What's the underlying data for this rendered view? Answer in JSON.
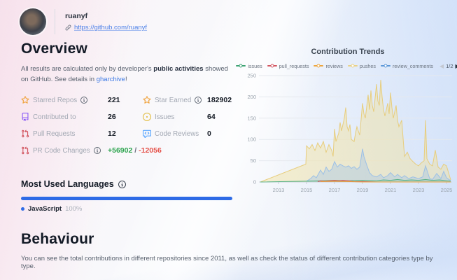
{
  "header": {
    "username": "ruanyf",
    "profile_url": "https://github.com/ruanyf"
  },
  "overview": {
    "title": "Overview",
    "desc_part1": "All results are calculated only by developer's ",
    "desc_bold": "public activities",
    "desc_part2": " showed on GitHub. See details in ",
    "desc_link": "gharchive",
    "desc_end": "!",
    "stats": [
      {
        "label": "Starred Repos",
        "icon": "star-icon",
        "has_info": true,
        "value": "221"
      },
      {
        "label": "Star Earned",
        "icon": "star-icon",
        "has_info": true,
        "value": "182902"
      },
      {
        "label": "Contributed to",
        "icon": "repo-icon",
        "has_info": false,
        "value": "26"
      },
      {
        "label": "Issues",
        "icon": "issue-icon",
        "has_info": false,
        "value": "64"
      },
      {
        "label": "Pull Requests",
        "icon": "pull-request-icon",
        "has_info": false,
        "value": "12"
      },
      {
        "label": "Code Reviews",
        "icon": "code-review-icon",
        "has_info": false,
        "value": "0"
      },
      {
        "label": "PR Code Changes",
        "icon": "pull-request-icon",
        "has_info": true,
        "additions": "+56902",
        "separator": "/",
        "deletions": "-12056"
      }
    ]
  },
  "languages": {
    "title": "Most Used Languages",
    "items": [
      {
        "name": "JavaScript",
        "percent": "100%",
        "color": "#2e6be6"
      }
    ]
  },
  "behaviour": {
    "title": "Behaviour",
    "description": "You can see the total contributions in different repositories since 2011, as well as check the status of different contribution categories type by type."
  },
  "chart_data": {
    "type": "area",
    "title": "Contribution Trends",
    "legend_position": "top",
    "legend_page": "1/2",
    "legend": [
      {
        "name": "issues",
        "color": "#3ba272"
      },
      {
        "name": "pull_requests",
        "color": "#d25560"
      },
      {
        "name": "reviews",
        "color": "#eda53c"
      },
      {
        "name": "pushes",
        "color": "#e9d187"
      },
      {
        "name": "review_comments",
        "color": "#5a96d8"
      }
    ],
    "grid": true,
    "x_range": [
      2011.6,
      2025.4
    ],
    "x_ticks": [
      2013,
      2015,
      2017,
      2019,
      2021,
      2023,
      2025
    ],
    "ylim": [
      0,
      250
    ],
    "y_ticks": [
      0,
      50,
      100,
      150,
      200,
      250
    ],
    "series": [
      {
        "name": "pushes",
        "color": "#e7cd7d",
        "fill": "rgba(243,224,148,0.42)",
        "points": [
          [
            2011.7,
            0
          ],
          [
            2014.95,
            42
          ],
          [
            2015.0,
            85
          ],
          [
            2015.2,
            78
          ],
          [
            2015.4,
            88
          ],
          [
            2015.6,
            74
          ],
          [
            2015.8,
            92
          ],
          [
            2016.0,
            80
          ],
          [
            2016.2,
            95
          ],
          [
            2016.4,
            70
          ],
          [
            2016.6,
            88
          ],
          [
            2016.8,
            74
          ],
          [
            2016.9,
            60
          ],
          [
            2017.0,
            125
          ],
          [
            2017.1,
            95
          ],
          [
            2017.3,
            115
          ],
          [
            2017.4,
            140
          ],
          [
            2017.5,
            120
          ],
          [
            2017.7,
            150
          ],
          [
            2017.8,
            175
          ],
          [
            2017.9,
            130
          ],
          [
            2018.0,
            120
          ],
          [
            2018.1,
            135
          ],
          [
            2018.2,
            100
          ],
          [
            2018.4,
            95
          ],
          [
            2018.5,
            115
          ],
          [
            2018.6,
            130
          ],
          [
            2018.8,
            110
          ],
          [
            2019.0,
            185
          ],
          [
            2019.1,
            160
          ],
          [
            2019.2,
            150
          ],
          [
            2019.4,
            205
          ],
          [
            2019.5,
            170
          ],
          [
            2019.6,
            215
          ],
          [
            2019.7,
            180
          ],
          [
            2019.8,
            165
          ],
          [
            2020.0,
            230
          ],
          [
            2020.1,
            190
          ],
          [
            2020.2,
            180
          ],
          [
            2020.3,
            240
          ],
          [
            2020.4,
            200
          ],
          [
            2020.5,
            170
          ],
          [
            2020.6,
            155
          ],
          [
            2020.8,
            185
          ],
          [
            2020.9,
            160
          ],
          [
            2021.0,
            210
          ],
          [
            2021.1,
            175
          ],
          [
            2021.2,
            150
          ],
          [
            2021.4,
            180
          ],
          [
            2021.5,
            145
          ],
          [
            2021.6,
            130
          ],
          [
            2021.8,
            145
          ],
          [
            2022.0,
            60
          ],
          [
            2022.2,
            70
          ],
          [
            2022.4,
            55
          ],
          [
            2022.6,
            48
          ],
          [
            2022.8,
            42
          ],
          [
            2023.0,
            38
          ],
          [
            2023.2,
            45
          ],
          [
            2023.4,
            50
          ],
          [
            2023.5,
            145
          ],
          [
            2023.6,
            55
          ],
          [
            2023.8,
            42
          ],
          [
            2024.0,
            38
          ],
          [
            2024.2,
            75
          ],
          [
            2024.4,
            35
          ],
          [
            2024.6,
            30
          ],
          [
            2024.8,
            42
          ],
          [
            2025.0,
            38
          ],
          [
            2025.3,
            5
          ]
        ]
      },
      {
        "name": "review_comments",
        "color": "#9cc0e6",
        "fill": "rgba(164,198,232,0.42)",
        "points": [
          [
            2015.0,
            2
          ],
          [
            2015.3,
            8
          ],
          [
            2015.5,
            15
          ],
          [
            2015.7,
            10
          ],
          [
            2016.0,
            28
          ],
          [
            2016.2,
            18
          ],
          [
            2016.4,
            35
          ],
          [
            2016.6,
            25
          ],
          [
            2016.8,
            30
          ],
          [
            2017.0,
            48
          ],
          [
            2017.2,
            35
          ],
          [
            2017.4,
            42
          ],
          [
            2017.6,
            38
          ],
          [
            2017.8,
            35
          ],
          [
            2018.0,
            38
          ],
          [
            2018.2,
            32
          ],
          [
            2018.4,
            36
          ],
          [
            2018.6,
            30
          ],
          [
            2018.8,
            35
          ],
          [
            2019.0,
            78
          ],
          [
            2019.1,
            60
          ],
          [
            2019.3,
            40
          ],
          [
            2019.5,
            22
          ],
          [
            2019.7,
            15
          ],
          [
            2020.0,
            12
          ],
          [
            2020.3,
            18
          ],
          [
            2020.5,
            10
          ],
          [
            2020.8,
            15
          ],
          [
            2021.0,
            22
          ],
          [
            2021.3,
            12
          ],
          [
            2021.5,
            18
          ],
          [
            2021.8,
            10
          ],
          [
            2022.0,
            15
          ],
          [
            2022.3,
            8
          ],
          [
            2022.6,
            12
          ],
          [
            2023.0,
            8
          ],
          [
            2023.3,
            12
          ],
          [
            2023.5,
            38
          ],
          [
            2023.8,
            8
          ],
          [
            2024.0,
            6
          ],
          [
            2024.3,
            20
          ],
          [
            2024.6,
            8
          ],
          [
            2024.8,
            25
          ],
          [
            2025.0,
            10
          ],
          [
            2025.3,
            3
          ]
        ]
      },
      {
        "name": "issues",
        "color": "#57b287",
        "fill": "rgba(90,178,135,0.25)",
        "points": [
          [
            2011.7,
            0
          ],
          [
            2015.0,
            2
          ],
          [
            2016.0,
            3
          ],
          [
            2017.0,
            4
          ],
          [
            2018.0,
            3
          ],
          [
            2019.0,
            4
          ],
          [
            2020.0,
            3
          ],
          [
            2020.5,
            5
          ],
          [
            2021.0,
            4
          ],
          [
            2021.5,
            6
          ],
          [
            2022.0,
            4
          ],
          [
            2022.5,
            5
          ],
          [
            2023.0,
            4
          ],
          [
            2023.5,
            6
          ],
          [
            2024.0,
            4
          ],
          [
            2024.5,
            5
          ],
          [
            2025.0,
            3
          ],
          [
            2025.3,
            2
          ]
        ]
      },
      {
        "name": "pull_requests",
        "color": "#d25560",
        "fill": "rgba(210,85,96,0.3)",
        "points": [
          [
            2015.8,
            1
          ],
          [
            2016.0,
            3
          ],
          [
            2016.3,
            2
          ],
          [
            2016.6,
            3
          ],
          [
            2017.0,
            4
          ],
          [
            2017.3,
            3
          ],
          [
            2017.6,
            4
          ],
          [
            2018.0,
            3
          ],
          [
            2018.2,
            2
          ],
          [
            2018.4,
            1
          ],
          [
            2019.0,
            1
          ],
          [
            2020.0,
            0
          ],
          [
            2025.3,
            0
          ]
        ]
      },
      {
        "name": "reviews",
        "color": "#eda53c",
        "fill": "rgba(237,165,60,0.3)",
        "points": [
          [
            2016.0,
            1
          ],
          [
            2017.0,
            2
          ],
          [
            2018.0,
            1
          ],
          [
            2019.0,
            0
          ],
          [
            2025.3,
            0
          ]
        ]
      }
    ]
  }
}
